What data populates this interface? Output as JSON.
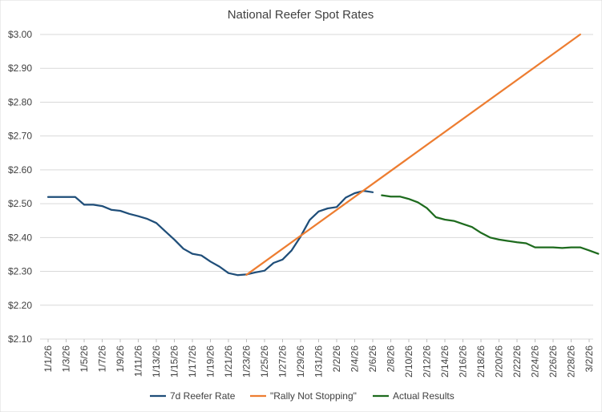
{
  "chart_data": {
    "type": "line",
    "title": "National Reefer Spot Rates",
    "xlabel": "",
    "ylabel": "",
    "ylim": [
      2.1,
      3.0
    ],
    "yticks": [
      "$2.10",
      "$2.20",
      "$2.30",
      "$2.40",
      "$2.50",
      "$2.60",
      "$2.70",
      "$2.80",
      "$2.90",
      "$3.00"
    ],
    "x_tick_labels": [
      "1/1/26",
      "1/3/26",
      "1/5/26",
      "1/7/26",
      "1/9/26",
      "1/11/26",
      "1/13/26",
      "1/15/26",
      "1/17/26",
      "1/19/26",
      "1/21/26",
      "1/23/26",
      "1/25/26",
      "1/27/26",
      "1/29/26",
      "1/31/26",
      "2/2/26",
      "2/4/26",
      "2/6/26",
      "2/8/26",
      "2/10/26",
      "2/12/26",
      "2/14/26",
      "2/16/26",
      "2/18/26",
      "2/20/26",
      "2/22/26",
      "2/24/26",
      "2/26/26",
      "2/28/26",
      "3/2/26"
    ],
    "grid": true,
    "legend_position": "bottom",
    "series": [
      {
        "name": "7d Reefer Rate",
        "color": "#1F4E79",
        "x": [
          "1/1/26",
          "1/2/26",
          "1/3/26",
          "1/4/26",
          "1/5/26",
          "1/6/26",
          "1/7/26",
          "1/8/26",
          "1/9/26",
          "1/10/26",
          "1/11/26",
          "1/12/26",
          "1/13/26",
          "1/14/26",
          "1/15/26",
          "1/16/26",
          "1/17/26",
          "1/18/26",
          "1/19/26",
          "1/20/26",
          "1/21/26",
          "1/22/26",
          "1/23/26",
          "1/24/26",
          "1/25/26",
          "1/26/26",
          "1/27/26",
          "1/28/26",
          "1/29/26",
          "1/30/26",
          "1/31/26",
          "2/1/26",
          "2/2/26",
          "2/3/26",
          "2/4/26",
          "2/5/26",
          "2/6/26"
        ],
        "values": [
          2.52,
          2.52,
          2.52,
          2.52,
          2.497,
          2.497,
          2.493,
          2.482,
          2.479,
          2.47,
          2.463,
          2.455,
          2.443,
          2.418,
          2.394,
          2.367,
          2.352,
          2.347,
          2.329,
          2.314,
          2.295,
          2.289,
          2.291,
          2.297,
          2.302,
          2.325,
          2.335,
          2.362,
          2.403,
          2.452,
          2.477,
          2.486,
          2.49,
          2.518,
          2.531,
          2.538,
          2.534
        ]
      },
      {
        "name": "\"Rally Not Stopping\"",
        "color": "#ED7D31",
        "x": [
          "1/23/26",
          "3/1/26"
        ],
        "values": [
          2.29,
          3.0
        ]
      },
      {
        "name": "Actual Results",
        "color": "#1E6B1E",
        "x": [
          "2/7/26",
          "2/8/26",
          "2/9/26",
          "2/10/26",
          "2/11/26",
          "2/12/26",
          "2/13/26",
          "2/14/26",
          "2/15/26",
          "2/16/26",
          "2/17/26",
          "2/18/26",
          "2/19/26",
          "2/20/26",
          "2/21/26",
          "2/22/26",
          "2/23/26",
          "2/24/26",
          "2/25/26",
          "2/26/26",
          "2/27/26",
          "2/28/26",
          "3/1/26",
          "3/2/26",
          "3/3/26"
        ],
        "values": [
          2.525,
          2.521,
          2.521,
          2.514,
          2.504,
          2.487,
          2.46,
          2.453,
          2.449,
          2.44,
          2.431,
          2.414,
          2.4,
          2.394,
          2.39,
          2.386,
          2.383,
          2.371,
          2.371,
          2.371,
          2.369,
          2.371,
          2.371,
          2.362,
          2.352
        ]
      }
    ]
  }
}
